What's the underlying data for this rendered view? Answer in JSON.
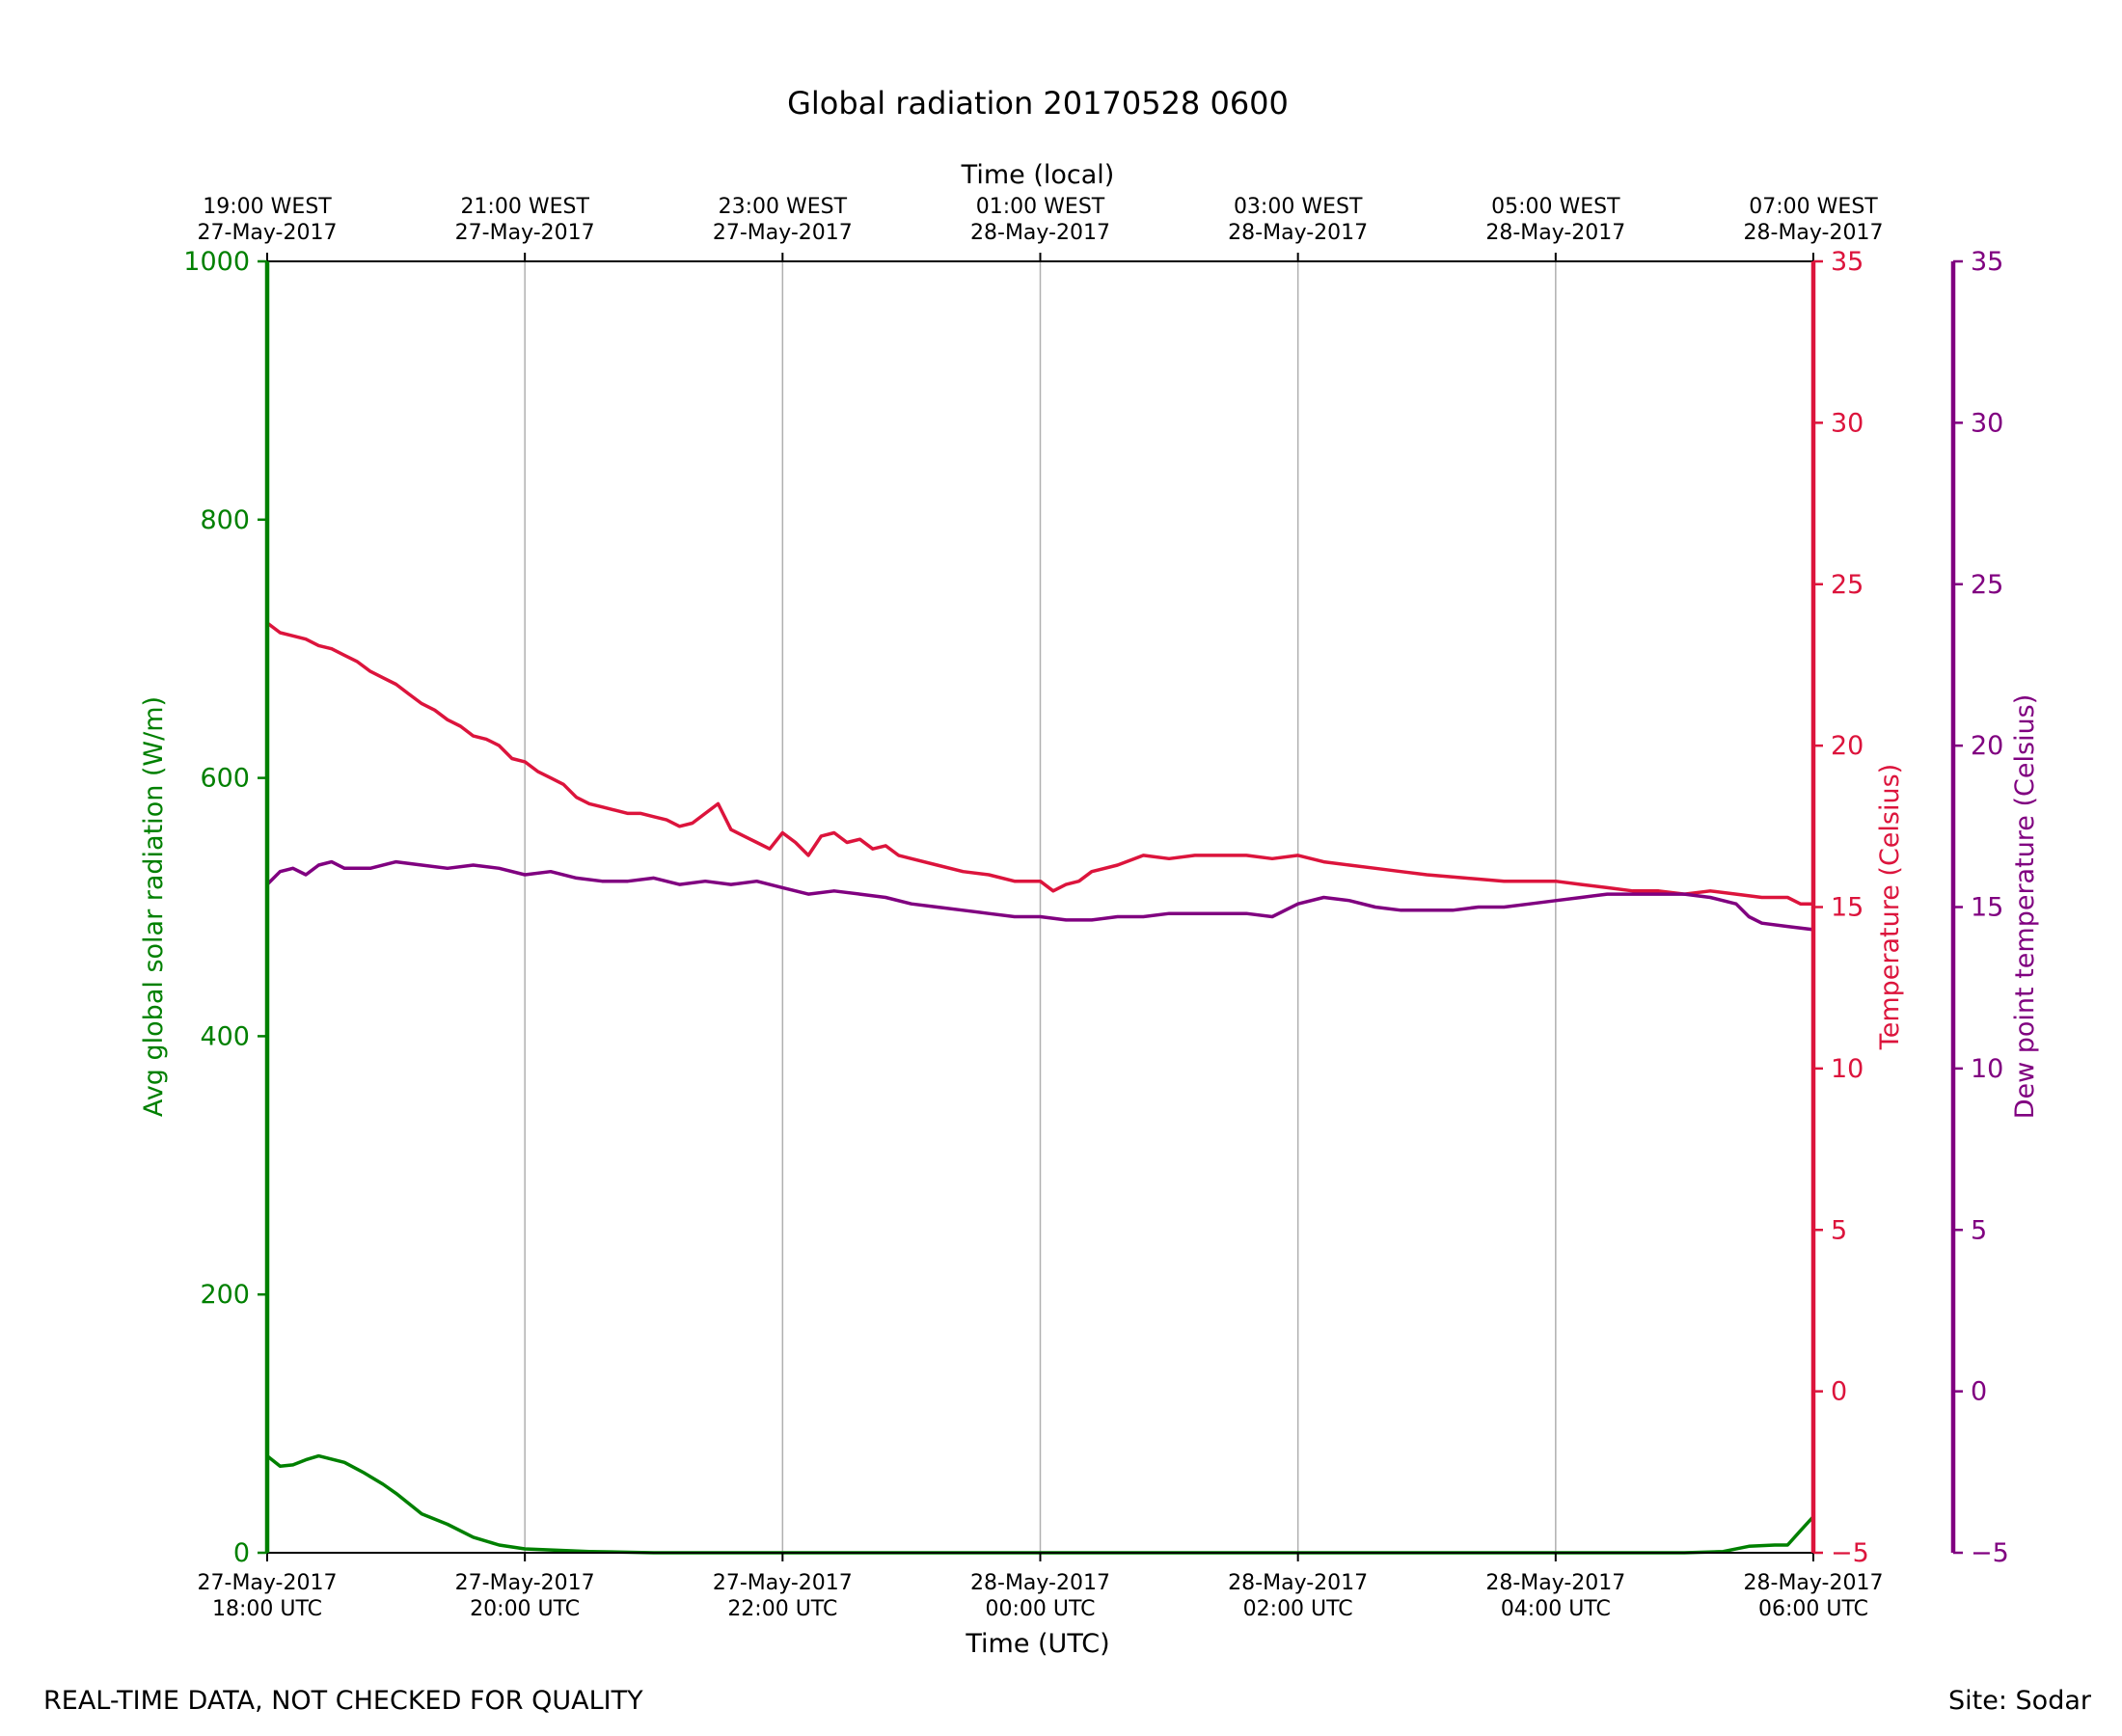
{
  "colors": {
    "radiation": "#008000",
    "temperature": "#dc143c",
    "dewpoint": "#800080",
    "grid": "#b0b0b0",
    "axis": "#000000"
  },
  "chart_data": {
    "type": "line",
    "title": "Global radiation 20170528 0600",
    "xlabel": "Time (UTC)",
    "x2label": "Time (local)",
    "x_range_hours_utc": [
      0,
      12
    ],
    "x_ticks_bottom": [
      {
        "hour": 0,
        "line1": "27-May-2017",
        "line2": "18:00 UTC"
      },
      {
        "hour": 2,
        "line1": "27-May-2017",
        "line2": "20:00 UTC"
      },
      {
        "hour": 4,
        "line1": "27-May-2017",
        "line2": "22:00 UTC"
      },
      {
        "hour": 6,
        "line1": "28-May-2017",
        "line2": "00:00 UTC"
      },
      {
        "hour": 8,
        "line1": "28-May-2017",
        "line2": "02:00 UTC"
      },
      {
        "hour": 10,
        "line1": "28-May-2017",
        "line2": "04:00 UTC"
      },
      {
        "hour": 12,
        "line1": "28-May-2017",
        "line2": "06:00 UTC"
      }
    ],
    "x_ticks_top": [
      {
        "hour": 0,
        "line1": "19:00 WEST",
        "line2": "27-May-2017"
      },
      {
        "hour": 2,
        "line1": "21:00 WEST",
        "line2": "27-May-2017"
      },
      {
        "hour": 4,
        "line1": "23:00 WEST",
        "line2": "27-May-2017"
      },
      {
        "hour": 6,
        "line1": "01:00 WEST",
        "line2": "28-May-2017"
      },
      {
        "hour": 8,
        "line1": "03:00 WEST",
        "line2": "28-May-2017"
      },
      {
        "hour": 10,
        "line1": "05:00 WEST",
        "line2": "28-May-2017"
      },
      {
        "hour": 12,
        "line1": "07:00 WEST",
        "line2": "28-May-2017"
      }
    ],
    "axes": {
      "radiation": {
        "label": "Avg global solar radiation (W/m)",
        "ylim": [
          0,
          1000
        ],
        "ticks": [
          0,
          200,
          400,
          600,
          800,
          1000
        ],
        "tick_labels": [
          "0",
          "200",
          "400",
          "600",
          "800",
          "1000"
        ]
      },
      "temperature": {
        "label": "Temperature (Celsius)",
        "ylim": [
          -5,
          35
        ],
        "ticks": [
          -5,
          0,
          5,
          10,
          15,
          20,
          25,
          30,
          35
        ],
        "tick_labels": [
          "−5",
          "0",
          "5",
          "10",
          "15",
          "20",
          "25",
          "30",
          "35"
        ]
      },
      "dewpoint": {
        "label": "Dew point temperature (Celsius)",
        "ylim": [
          -5,
          35
        ],
        "ticks": [
          -5,
          0,
          5,
          10,
          15,
          20,
          25,
          30,
          35
        ],
        "tick_labels": [
          "−5",
          "0",
          "5",
          "10",
          "15",
          "20",
          "25",
          "30",
          "35"
        ]
      }
    },
    "grid": "vertical",
    "series": [
      {
        "name": "Avg global solar radiation",
        "axis": "radiation",
        "x": [
          0,
          0.1,
          0.2,
          0.3,
          0.4,
          0.6,
          0.75,
          0.9,
          1.0,
          1.2,
          1.4,
          1.6,
          1.8,
          2.0,
          2.5,
          3.0,
          4.0,
          5.0,
          6.0,
          7.0,
          8.0,
          9.0,
          10.0,
          11.0,
          11.3,
          11.5,
          11.7,
          11.8,
          11.9,
          12.0
        ],
        "values": [
          75,
          67,
          68,
          72,
          75,
          70,
          62,
          53,
          46,
          30,
          22,
          12,
          6,
          3,
          1,
          0,
          0,
          0,
          0,
          0,
          0,
          0,
          0,
          0,
          1,
          5,
          6,
          6,
          17,
          28
        ]
      },
      {
        "name": "Temperature",
        "axis": "temperature",
        "x": [
          0,
          0.1,
          0.2,
          0.3,
          0.4,
          0.5,
          0.6,
          0.7,
          0.8,
          0.9,
          1.0,
          1.1,
          1.2,
          1.3,
          1.4,
          1.5,
          1.6,
          1.7,
          1.8,
          1.9,
          2.0,
          2.1,
          2.2,
          2.3,
          2.4,
          2.5,
          2.6,
          2.7,
          2.8,
          2.9,
          3.0,
          3.1,
          3.2,
          3.3,
          3.4,
          3.5,
          3.6,
          3.7,
          3.8,
          3.9,
          4.0,
          4.1,
          4.2,
          4.3,
          4.4,
          4.5,
          4.6,
          4.7,
          4.8,
          4.9,
          5.0,
          5.2,
          5.4,
          5.6,
          5.8,
          6.0,
          6.1,
          6.2,
          6.3,
          6.4,
          6.6,
          6.8,
          7.0,
          7.2,
          7.4,
          7.6,
          7.8,
          8.0,
          8.2,
          8.4,
          8.6,
          8.8,
          9.0,
          9.3,
          9.6,
          10.0,
          10.2,
          10.4,
          10.6,
          10.8,
          11.0,
          11.2,
          11.4,
          11.6,
          11.8,
          11.9,
          12.0
        ],
        "values": [
          23.8,
          23.5,
          23.4,
          23.3,
          23.1,
          23.0,
          22.8,
          22.6,
          22.3,
          22.1,
          21.9,
          21.6,
          21.3,
          21.1,
          20.8,
          20.6,
          20.3,
          20.2,
          20.0,
          19.6,
          19.5,
          19.2,
          19.0,
          18.8,
          18.4,
          18.2,
          18.1,
          18.0,
          17.9,
          17.9,
          17.8,
          17.7,
          17.5,
          17.6,
          17.9,
          18.2,
          17.4,
          17.2,
          17.0,
          16.8,
          17.3,
          17.0,
          16.6,
          17.2,
          17.3,
          17.0,
          17.1,
          16.8,
          16.9,
          16.6,
          16.5,
          16.3,
          16.1,
          16.0,
          15.8,
          15.8,
          15.5,
          15.7,
          15.8,
          16.1,
          16.3,
          16.6,
          16.5,
          16.6,
          16.6,
          16.6,
          16.5,
          16.6,
          16.4,
          16.3,
          16.2,
          16.1,
          16.0,
          15.9,
          15.8,
          15.8,
          15.7,
          15.6,
          15.5,
          15.5,
          15.4,
          15.5,
          15.4,
          15.3,
          15.3,
          15.1,
          15.1
        ]
      },
      {
        "name": "Dew point temperature",
        "axis": "dewpoint",
        "x": [
          0,
          0.1,
          0.2,
          0.3,
          0.4,
          0.5,
          0.6,
          0.8,
          1.0,
          1.2,
          1.4,
          1.6,
          1.8,
          2.0,
          2.2,
          2.4,
          2.6,
          2.8,
          3.0,
          3.2,
          3.4,
          3.6,
          3.8,
          4.0,
          4.2,
          4.4,
          4.6,
          4.8,
          5.0,
          5.2,
          5.4,
          5.6,
          5.8,
          6.0,
          6.2,
          6.4,
          6.6,
          6.8,
          7.0,
          7.2,
          7.4,
          7.6,
          7.8,
          8.0,
          8.2,
          8.4,
          8.6,
          8.8,
          9.0,
          9.2,
          9.4,
          9.6,
          9.8,
          10.0,
          10.2,
          10.4,
          10.6,
          10.8,
          11.0,
          11.2,
          11.4,
          11.5,
          11.6,
          11.8,
          12.0
        ],
        "values": [
          15.7,
          16.1,
          16.2,
          16.0,
          16.3,
          16.4,
          16.2,
          16.2,
          16.4,
          16.3,
          16.2,
          16.3,
          16.2,
          16.0,
          16.1,
          15.9,
          15.8,
          15.8,
          15.9,
          15.7,
          15.8,
          15.7,
          15.8,
          15.6,
          15.4,
          15.5,
          15.4,
          15.3,
          15.1,
          15.0,
          14.9,
          14.8,
          14.7,
          14.7,
          14.6,
          14.6,
          14.7,
          14.7,
          14.8,
          14.8,
          14.8,
          14.8,
          14.7,
          15.1,
          15.3,
          15.2,
          15.0,
          14.9,
          14.9,
          14.9,
          15.0,
          15.0,
          15.1,
          15.2,
          15.3,
          15.4,
          15.4,
          15.4,
          15.4,
          15.3,
          15.1,
          14.7,
          14.5,
          14.4,
          14.3
        ]
      }
    ]
  },
  "footer": {
    "left": "REAL-TIME DATA, NOT CHECKED FOR QUALITY",
    "right": "Site: Sodar"
  }
}
